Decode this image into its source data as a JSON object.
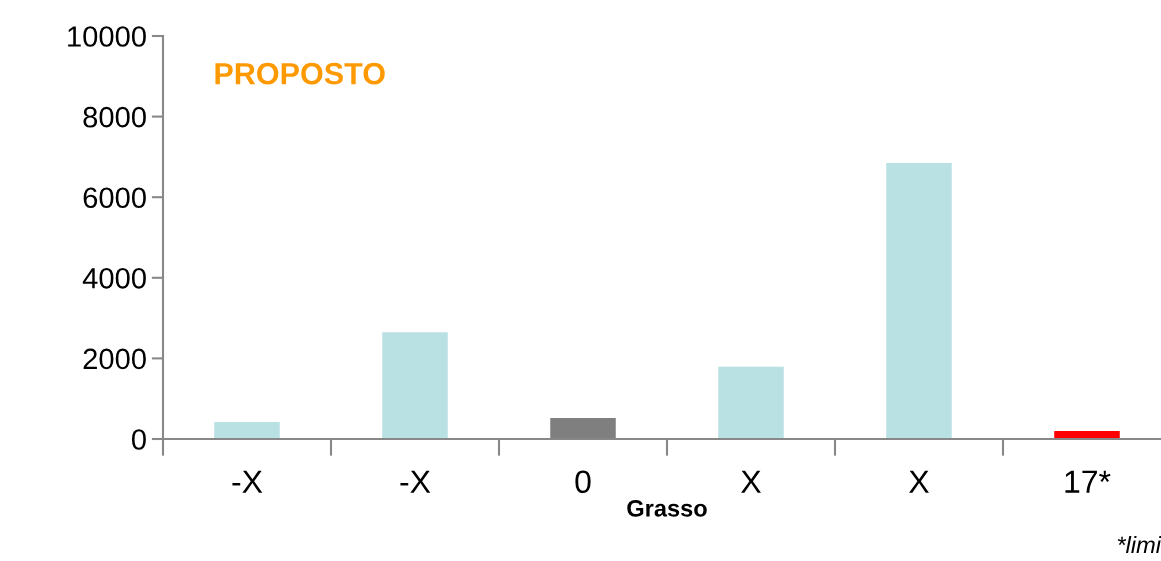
{
  "chart_data": {
    "type": "bar",
    "title": "PROPOSTO",
    "xlabel": "Grasso",
    "categories": [
      "-X",
      "-X",
      "0",
      "X",
      "X",
      "17*"
    ],
    "values": [
      420,
      2650,
      520,
      1790,
      6850,
      200
    ],
    "colors": [
      "#b9e0e3",
      "#b9e0e3",
      "#7f7f7f",
      "#b9e0e3",
      "#b9e0e3",
      "#ff0000"
    ],
    "ylim": [
      0,
      10000
    ],
    "yticks": [
      0,
      2000,
      4000,
      6000,
      8000,
      10000
    ],
    "grid": false,
    "legend": false,
    "annotations": [
      "*limi"
    ]
  }
}
